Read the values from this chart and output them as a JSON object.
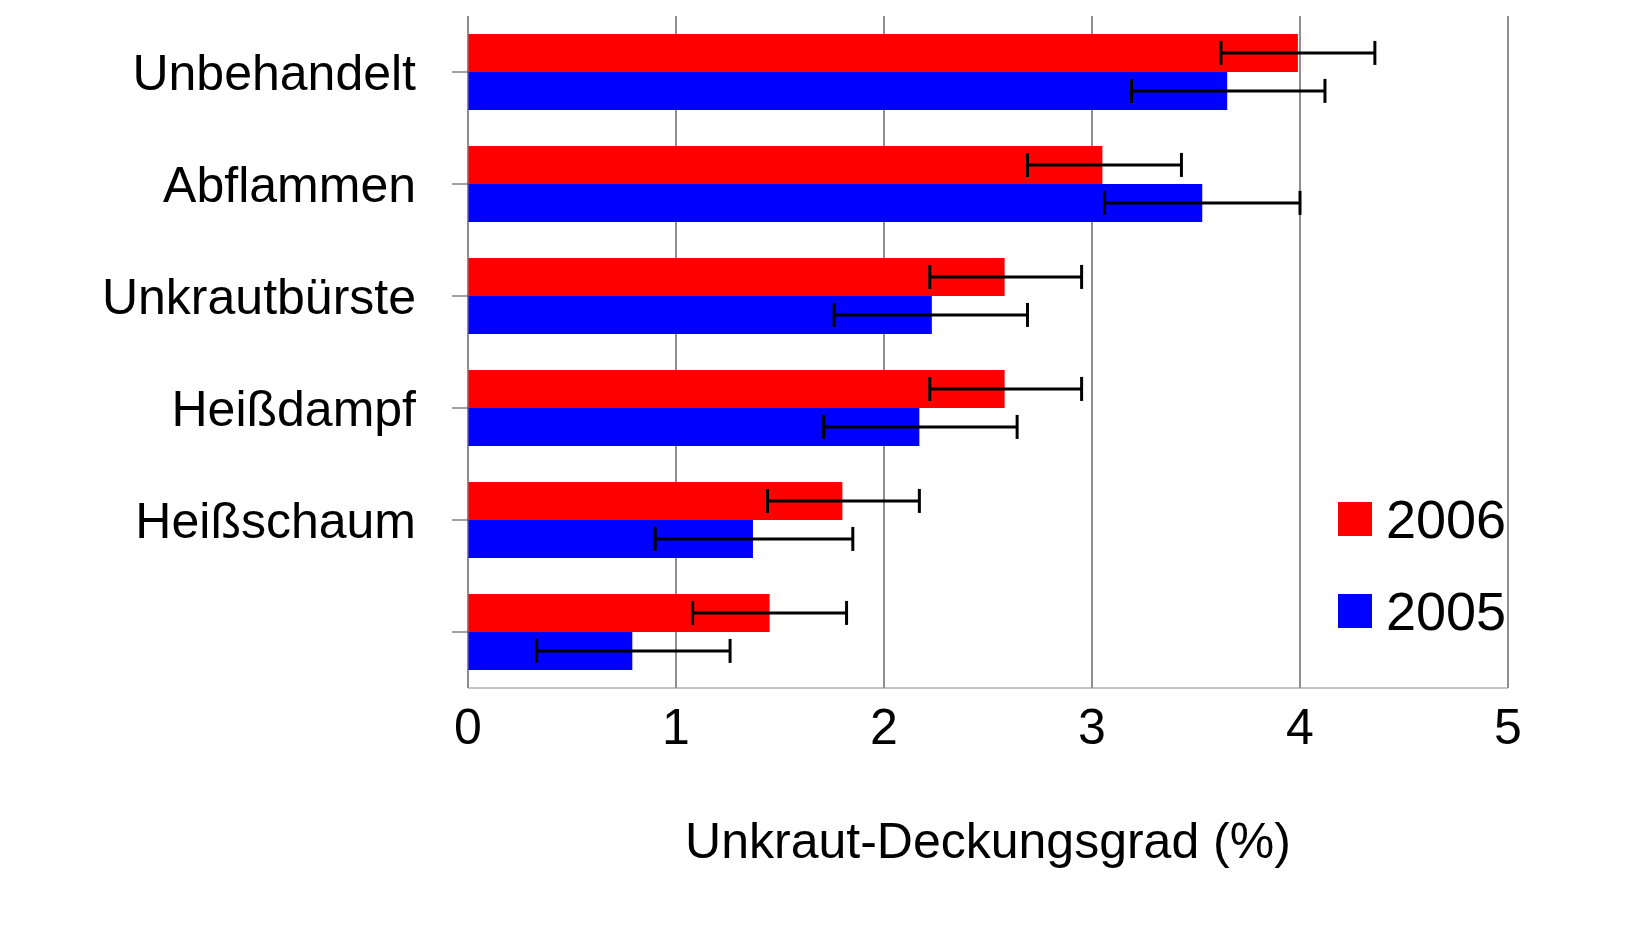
{
  "chart_data": {
    "type": "bar",
    "orientation": "horizontal",
    "xlabel": "Unkraut-Deckungsgrad (%)",
    "categories": [
      "Unbehandelt",
      "Abflammen",
      "Unkrautbürste",
      "Heißdampf",
      "Heißschaum",
      null
    ],
    "series": [
      {
        "name": "2006",
        "color": "#ff0000",
        "values": [
          3.99,
          3.05,
          2.58,
          2.58,
          1.8,
          1.45
        ],
        "errors": [
          [
            3.62,
            4.36
          ],
          [
            2.69,
            3.43
          ],
          [
            2.22,
            2.95
          ],
          [
            2.22,
            2.95
          ],
          [
            1.44,
            2.17
          ],
          [
            1.08,
            1.82
          ]
        ]
      },
      {
        "name": "2005",
        "color": "#0000ff",
        "values": [
          3.65,
          3.53,
          2.23,
          2.17,
          1.37,
          0.79
        ],
        "errors": [
          [
            3.19,
            4.12
          ],
          [
            3.06,
            4.0
          ],
          [
            1.76,
            2.69
          ],
          [
            1.71,
            2.64
          ],
          [
            0.9,
            1.85
          ],
          [
            0.33,
            1.26
          ]
        ]
      }
    ],
    "xlim": [
      0,
      5
    ],
    "xticks": [
      0,
      1,
      2,
      3,
      4,
      5
    ],
    "grid": "x",
    "legend": "bottom right"
  }
}
